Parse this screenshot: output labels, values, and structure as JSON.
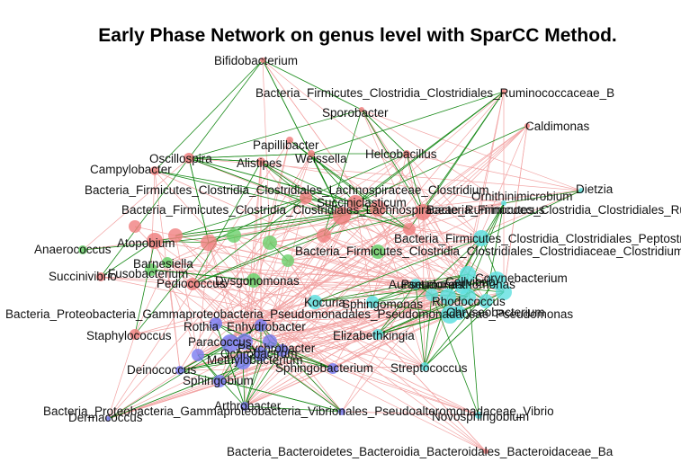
{
  "title": "Early Phase Network on genus level with SparCC Method.",
  "colors": {
    "positive_edge": "#1a8a1a",
    "negative_edge": "#f2a3a3",
    "red_node": "#f08080",
    "green_node": "#6ad06a",
    "cyan_node": "#5fe0e0",
    "blue_node": "#7b7bf0"
  },
  "labels": [
    "Bifidobacterium",
    "Bacteria_Firmicutes_Clostridia_Clostridiales_Ruminococcaceae_B",
    "Sporobacter",
    "Caldimonas",
    "Papillibacter",
    "Oscillospira",
    "Weissella",
    "Helcobacillus",
    "Alistipes",
    "Campylobacter",
    "Bacteria_Firmicutes_Clostridia_Clostridiales_Lachnospiraceae_Clostridium",
    "Dietzia",
    "Ornithinimicrobium",
    "Bacteria_Firmicutes_Clostridia_Clostridiales_Ruminococcaceae_Clostridium",
    "Bacteria_Firmicutes_Clostridia_Clostridiales_Lachnospiraceae_Ruminococcus",
    "Succiniclasticum",
    "Bacteria_Firmicutes_Clostridia_Clostridiales_Peptostreptococcaceae_C",
    "Anaerococcus",
    "Atopobium",
    "Bacteria_Firmicutes_Clostridia_Clostridiales_Clostridiaceae_Clostridium",
    "Succinivibrio",
    "Fusobacterium",
    "Barnesiella",
    "Pediococcus",
    "Dysgonomonas",
    "Aurantimonas",
    "Pseudoxanthomonas",
    "Cellvibrio",
    "Rhodococcus",
    "Corynebacterium",
    "Chryseobacterium",
    "Kocuria",
    "Sphingomonas",
    "Bacteria_Proteobacteria_Gammaproteobacteria_Pseudomonadales_Pseudomonadaceae_Pseudomonas",
    "Enhydrobacter",
    "Staphylococcus",
    "Elizabethkingia",
    "Rothia",
    "Paracoccus",
    "Ochrobactrum",
    "Methylobacterium",
    "Psychrobacter",
    "Deinococcus",
    "Sphingobacterium",
    "Sphingobium",
    "Streptococcus",
    "Arthrobacter",
    "Bacteria_Proteobacteria_Gammaproteobacteria_Vibrionales_Pseudoalteromonadaceae_Vibrio",
    "Dermacoccus",
    "Novosphingobium",
    "Bacteria_Bacteroidetes_Bacteroidia_Bacteroidales_Bacteroidaceae_Ba"
  ]
}
